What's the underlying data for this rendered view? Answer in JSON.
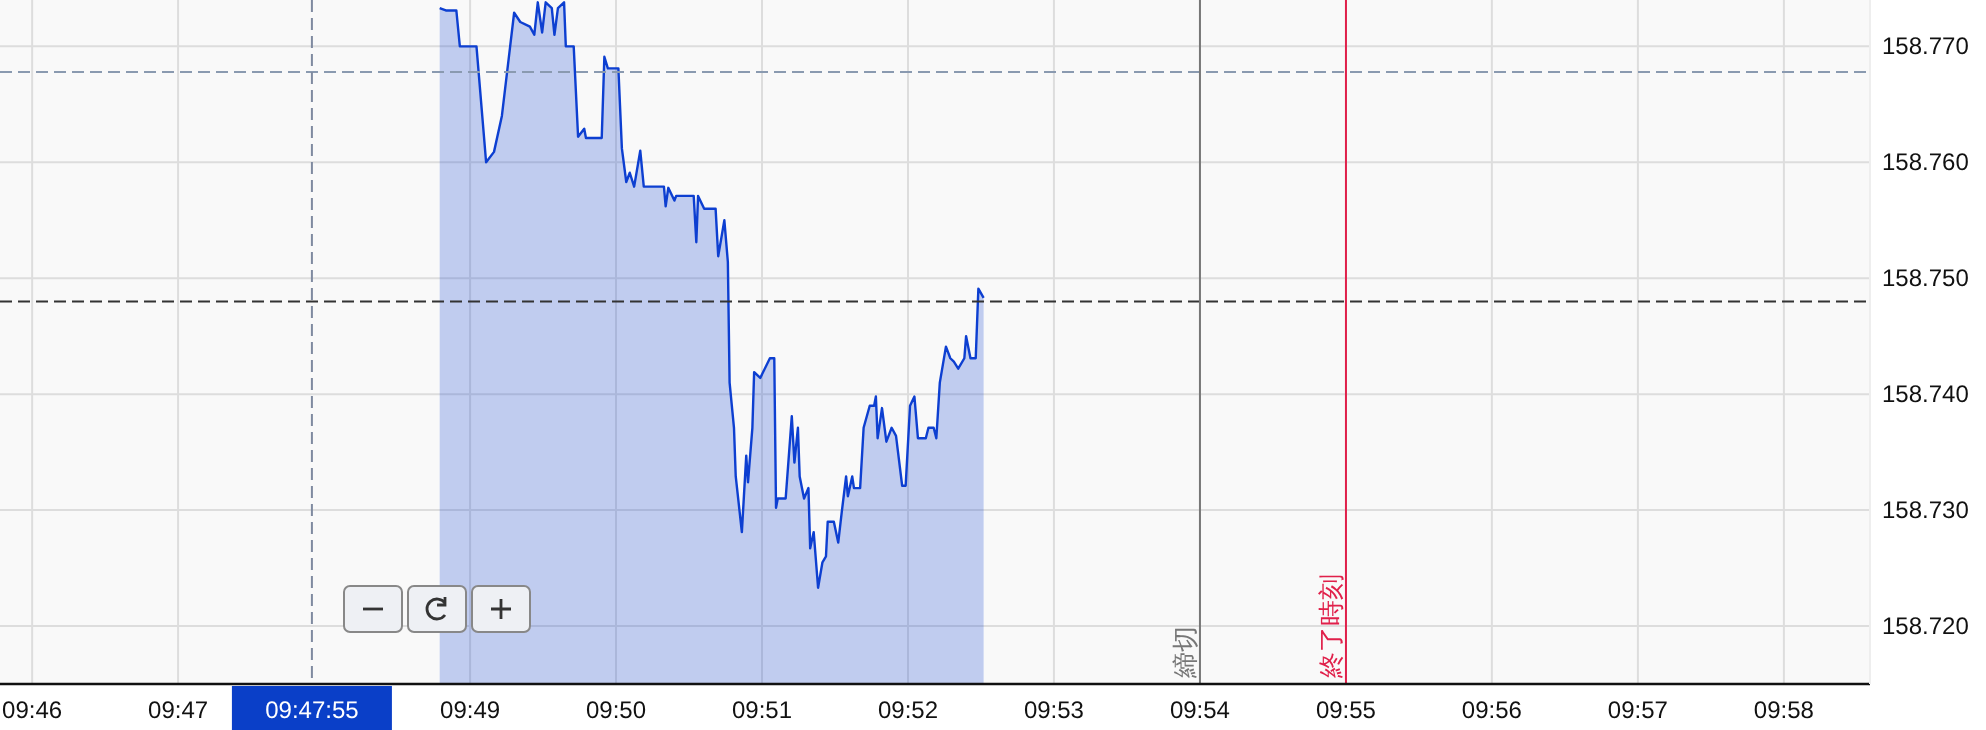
{
  "chart_data": {
    "type": "area",
    "color": "#0d3fd1",
    "grid": true,
    "marker": "none",
    "line_style": "solid",
    "x": [
      9.8132,
      9.8139,
      9.8151,
      9.8155,
      9.8174,
      9.8185,
      9.8194,
      9.8203,
      9.8217,
      9.8224,
      9.8235,
      9.824,
      9.8244,
      9.8249,
      9.8253,
      9.826,
      9.8263,
      9.8267,
      9.8274,
      9.8276,
      9.8285,
      9.829,
      9.8297,
      9.8299,
      9.8317,
      9.832,
      9.8324,
      9.8336,
      9.834,
      9.8345,
      9.8349,
      9.8354,
      9.8361,
      9.8365,
      9.8388,
      9.839,
      9.8393,
      9.84,
      9.8402,
      9.8422,
      9.8425,
      9.8427,
      9.8434,
      9.8447,
      9.845,
      9.8457,
      9.8461,
      9.8463,
      9.8468,
      9.847,
      9.8477,
      9.8482,
      9.8484,
      9.8489,
      9.8491,
      9.8498,
      9.8509,
      9.8514,
      9.8516,
      9.8518,
      9.8527,
      9.8534,
      9.8537,
      9.8541,
      9.8543,
      9.8548,
      9.8553,
      9.8555,
      9.8559,
      9.8564,
      9.8569,
      9.8573,
      9.8575,
      9.8582,
      9.8587,
      9.8591,
      9.8596,
      9.8598,
      9.8603,
      9.8605,
      9.8612,
      9.8616,
      9.8623,
      9.8628,
      9.863,
      9.8632,
      9.8637,
      9.8642,
      9.8648,
      9.8653,
      9.866,
      9.8664,
      9.8669,
      9.8674,
      9.8678,
      9.8687,
      9.869,
      9.8696,
      9.8699,
      9.8703,
      9.871,
      9.8715,
      9.8719,
      9.8724,
      9.8731,
      9.8733,
      9.8738,
      9.8744,
      9.8747,
      9.8753
    ],
    "values": [
      158.7733,
      158.7731,
      158.7731,
      158.77,
      158.77,
      158.76,
      158.7609,
      158.764,
      158.7729,
      158.7721,
      158.7717,
      158.771,
      158.7738,
      158.7712,
      158.7738,
      158.7733,
      158.771,
      158.7733,
      158.7738,
      158.77,
      158.77,
      158.7622,
      158.7629,
      158.7621,
      158.7621,
      158.7691,
      158.7681,
      158.7681,
      158.7612,
      158.7583,
      158.7591,
      158.7579,
      158.761,
      158.7579,
      158.7579,
      158.7562,
      158.7578,
      158.7567,
      158.7571,
      158.7571,
      158.7531,
      158.7571,
      158.756,
      158.756,
      158.7519,
      158.755,
      158.7514,
      158.741,
      158.7371,
      158.7329,
      158.7281,
      158.7347,
      158.7324,
      158.7371,
      158.7419,
      158.7414,
      158.7431,
      158.7431,
      158.7302,
      158.731,
      158.731,
      158.7381,
      158.7341,
      158.7371,
      158.7329,
      158.731,
      158.7319,
      158.7267,
      158.7281,
      158.7233,
      158.7255,
      158.726,
      158.729,
      158.729,
      158.7272,
      158.7298,
      158.7329,
      158.7312,
      158.7329,
      158.7319,
      158.7319,
      158.7371,
      158.739,
      158.739,
      158.7398,
      158.7362,
      158.7388,
      158.7359,
      158.7371,
      158.7364,
      158.7321,
      158.7321,
      158.739,
      158.7398,
      158.7362,
      158.7362,
      158.7371,
      158.7371,
      158.7362,
      158.741,
      158.7441,
      158.7431,
      158.7428,
      158.7422,
      158.7431,
      158.745,
      158.7431,
      158.7431,
      158.7491,
      158.7483
    ],
    "annotations": [
      "09:47:55"
    ],
    "xlim": [
      9.763,
      9.9765
    ],
    "ylim": [
      158.715,
      158.774
    ],
    "xticks": [
      {
        "value": 9.76667,
        "label": "09:46"
      },
      {
        "value": 9.78333,
        "label": "09:47"
      },
      {
        "value": 9.81667,
        "label": "09:49"
      },
      {
        "value": 9.83333,
        "label": "09:50"
      },
      {
        "value": 9.85,
        "label": "09:51"
      },
      {
        "value": 9.86667,
        "label": "09:52"
      },
      {
        "value": 9.88333,
        "label": "09:53"
      },
      {
        "value": 9.9,
        "label": "09:54"
      },
      {
        "value": 9.91667,
        "label": "09:55"
      },
      {
        "value": 9.93333,
        "label": "09:56"
      },
      {
        "value": 9.95,
        "label": "09:57"
      },
      {
        "value": 9.96667,
        "label": "09:58"
      }
    ],
    "yticks": [
      {
        "value": 158.72,
        "label": "158.720"
      },
      {
        "value": 158.73,
        "label": "158.730"
      },
      {
        "value": 158.74,
        "label": "158.740"
      },
      {
        "value": 158.75,
        "label": "158.750"
      },
      {
        "value": 158.76,
        "label": "158.760"
      },
      {
        "value": 158.77,
        "label": "158.770"
      }
    ],
    "ref_lines": [
      {
        "axis": "y",
        "value": 158.748,
        "color": "#333333",
        "line_style": "dashed"
      },
      {
        "axis": "y",
        "value": 158.7678,
        "color": "#8a9ab0",
        "line_style": "dashed"
      },
      {
        "axis": "x",
        "value": 9.7986111,
        "color": "#7f8aa0",
        "line_style": "dashed"
      },
      {
        "axis": "x",
        "value": 9.9,
        "label": "締切",
        "color": "#777777",
        "line_style": "solid"
      },
      {
        "axis": "x",
        "value": 9.91667,
        "label": "終了時刻",
        "color": "#e0204a",
        "line_style": "solid"
      }
    ]
  }
}
